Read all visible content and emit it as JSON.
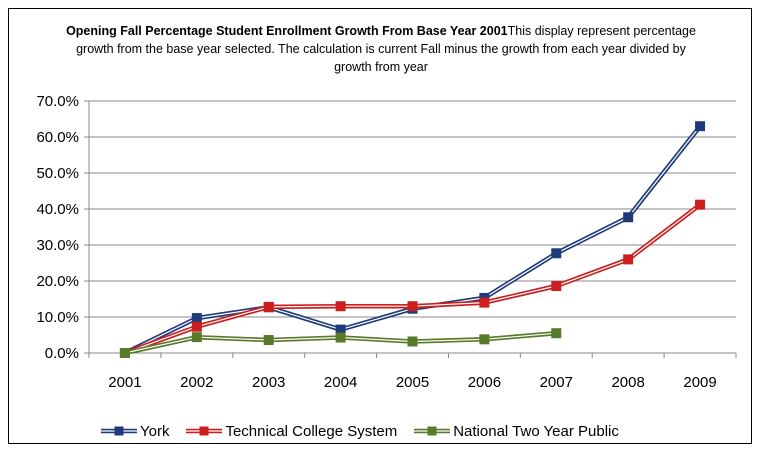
{
  "chart_data": {
    "type": "line",
    "title": "Opening Fall Percentage Student Enrollment Growth From Base  Year 2001",
    "subtitle": "This display represent percentage growth from the base year selected.  The calculation is current Fall minus the growth from each year divided by growth from year",
    "categories": [
      "2001",
      "2002",
      "2003",
      "2004",
      "2005",
      "2006",
      "2007",
      "2008",
      "2009"
    ],
    "ylim": [
      0,
      70
    ],
    "y_ticks": [
      "0.0%",
      "10.0%",
      "20.0%",
      "30.0%",
      "40.0%",
      "50.0%",
      "60.0%",
      "70.0%"
    ],
    "grid": "horizontal",
    "legend_position": "bottom",
    "series": [
      {
        "name": "York",
        "color": "#1f3a7a",
        "values": [
          0.0,
          9.7,
          12.7,
          6.5,
          12.3,
          15.3,
          27.7,
          37.7,
          63.0
        ]
      },
      {
        "name": "Technical College System",
        "color": "#cc1e1e",
        "values": [
          0.0,
          7.3,
          12.8,
          13.0,
          13.0,
          14.0,
          18.6,
          26.0,
          41.2
        ]
      },
      {
        "name": "National Two Year Public",
        "color": "#5a7a2b",
        "values": [
          0.0,
          4.4,
          3.6,
          4.3,
          3.2,
          3.8,
          5.5,
          null,
          null
        ]
      }
    ]
  }
}
